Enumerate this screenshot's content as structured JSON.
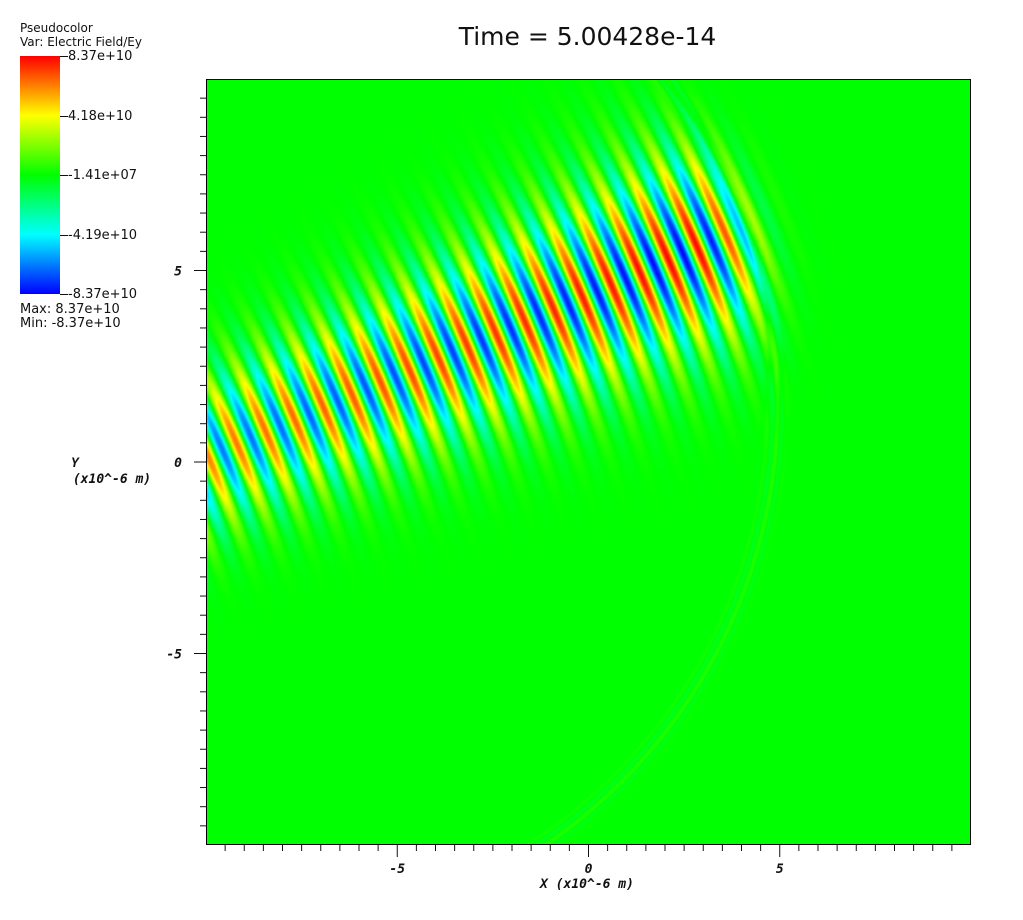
{
  "chart_data": {
    "type": "heatmap",
    "title": "Time = 5.00428e-14",
    "plot_type": "Pseudocolor",
    "variable": "Var: Electric Field/Ey",
    "xlabel": "X (x10^-6 m)",
    "ylabel_line1": "Y",
    "ylabel_line2": "(x10^-6 m)",
    "xlim": [
      -10,
      10
    ],
    "ylim": [
      -10,
      10
    ],
    "xticks": [
      -5,
      0,
      5
    ],
    "yticks": [
      -5,
      0,
      5
    ],
    "tick_labels_x": [
      "-5",
      "0",
      "5"
    ],
    "tick_labels_y": [
      "-5",
      "0",
      "5"
    ],
    "minor_tick_step": 0.5,
    "grid": false,
    "colorbar": {
      "labels": [
        "8.37e+10",
        "4.18e+10",
        "-1.41e+07",
        "-4.19e+10",
        "-8.37e+10"
      ],
      "max_label": "Max:  8.37e+10",
      "min_label": "Min: -8.37e+10",
      "colors": [
        "#ff0000",
        "#ffff00",
        "#00ff00",
        "#00ffff",
        "#0000ff"
      ],
      "placement": "top-left"
    }
  }
}
